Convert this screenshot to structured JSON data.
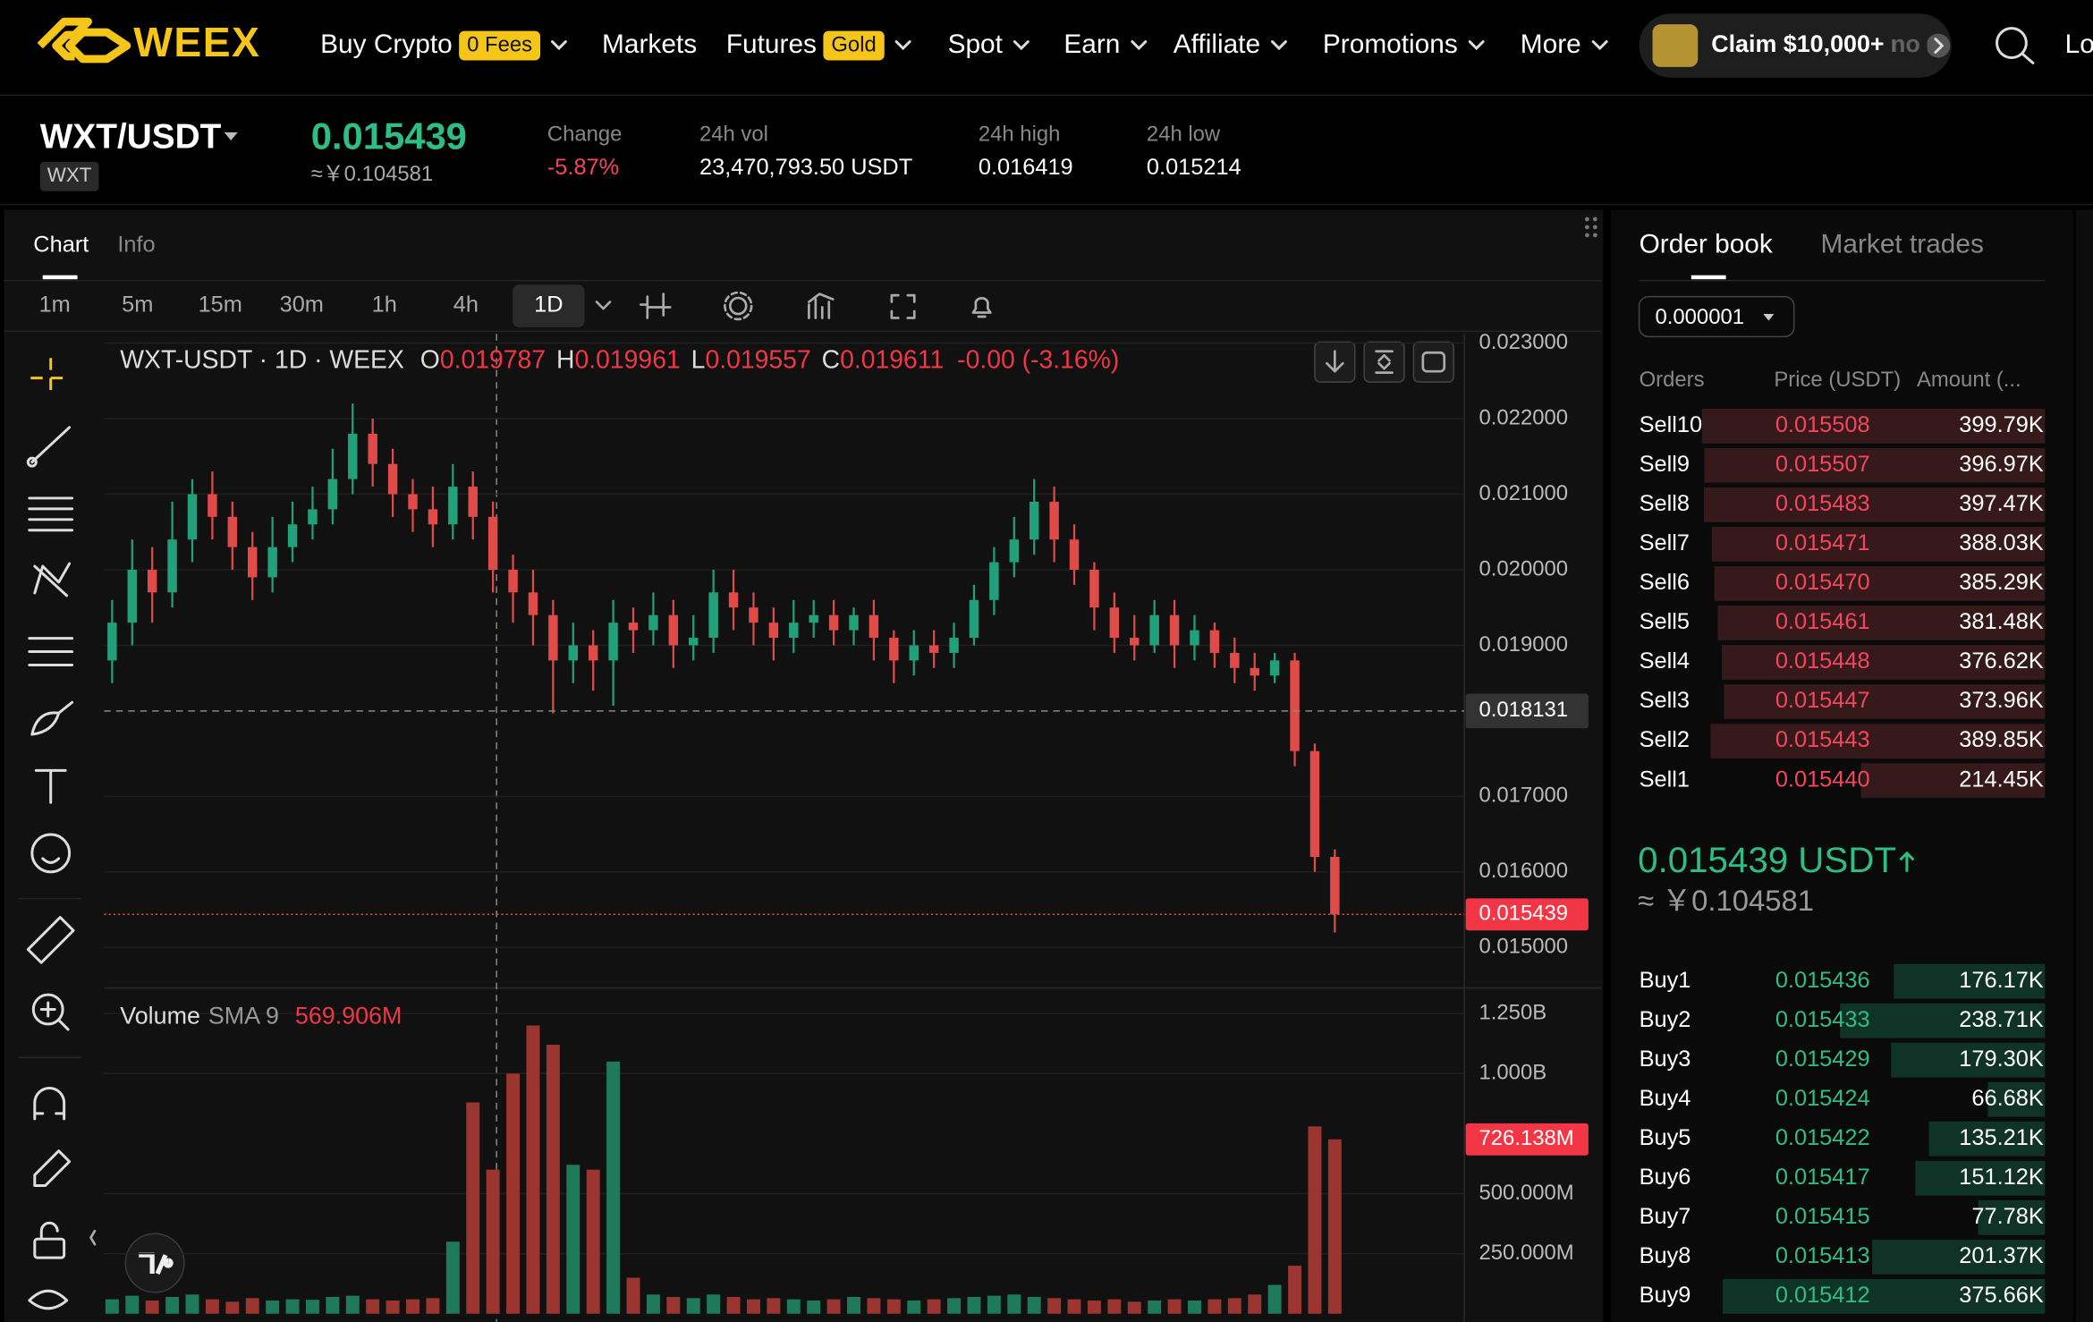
{
  "nav": {
    "logo": "WEEX",
    "menu": [
      {
        "label": "Buy Crypto",
        "badge": "0 Fees",
        "dropdown": true
      },
      {
        "label": "Markets",
        "dropdown": false
      },
      {
        "label": "Futures",
        "badge": "Gold",
        "dropdown": true
      },
      {
        "label": "Spot",
        "dropdown": true
      },
      {
        "label": "Earn",
        "dropdown": true
      },
      {
        "label": "Affiliate",
        "dropdown": true
      },
      {
        "label": "Promotions",
        "dropdown": true
      },
      {
        "label": "More",
        "dropdown": true
      }
    ],
    "promo": "Claim $10,000+ no",
    "login": "Lo"
  },
  "ticker": {
    "pair": "WXT/USDT",
    "base": "WXT",
    "price": "0.015439",
    "price_cny": "≈￥0.104581",
    "stats": [
      {
        "label": "Change",
        "value": "-5.87%"
      },
      {
        "label": "24h vol",
        "value": "23,470,793.50 USDT"
      },
      {
        "label": "24h high",
        "value": "0.016419"
      },
      {
        "label": "24h low",
        "value": "0.015214"
      }
    ]
  },
  "tabs": [
    "Chart",
    "Info"
  ],
  "intervals": [
    "1m",
    "5m",
    "15m",
    "30m",
    "1h",
    "4h",
    "1D"
  ],
  "selected_interval": 6,
  "chart_data": {
    "type": "candlestick",
    "title": "WXT-USDT · 1D · WEEX",
    "ohlc_legend": [
      {
        "label": "O",
        "value": "0.019787"
      },
      {
        "label": "H",
        "value": "0.019961"
      },
      {
        "label": "L",
        "value": "0.019557"
      },
      {
        "label": "C",
        "value": "0.019611"
      }
    ],
    "change": "-0.00 (-3.16%)",
    "up_color": "#22a07a",
    "down_color": "#e04b4a",
    "volume_up_color": "#1f7a5c",
    "volume_down_color": "#9a3530",
    "grid": true,
    "ylim": [
      0.0145,
      0.02312
    ],
    "yticks": [
      {
        "value": 0.023,
        "label": "0.023000"
      },
      {
        "value": 0.022,
        "label": "0.022000"
      },
      {
        "value": 0.021,
        "label": "0.021000"
      },
      {
        "value": 0.02,
        "label": "0.020000"
      },
      {
        "value": 0.019,
        "label": "0.019000"
      },
      {
        "value": 0.017,
        "label": "0.017000"
      },
      {
        "value": 0.016,
        "label": "0.016000"
      },
      {
        "value": 0.015,
        "label": "0.015000"
      }
    ],
    "crosshair": {
      "value": 0.018131,
      "label": "0.018131"
    },
    "last_price": {
      "value": 0.015439,
      "label": "0.015439"
    },
    "open": [
      0.0188,
      0.0193,
      0.02,
      0.0197,
      0.0204,
      0.021,
      0.0207,
      0.0203,
      0.0199,
      0.0203,
      0.0206,
      0.0208,
      0.0212,
      0.0218,
      0.0214,
      0.021,
      0.0208,
      0.0206,
      0.0211,
      0.0207,
      0.02,
      0.0197,
      0.0194,
      0.0188,
      0.019,
      0.0188,
      0.0193,
      0.0192,
      0.0194,
      0.019,
      0.0191,
      0.0197,
      0.0195,
      0.0193,
      0.0191,
      0.0193,
      0.0194,
      0.0192,
      0.0194,
      0.0191,
      0.0188,
      0.019,
      0.0189,
      0.0191,
      0.0196,
      0.0201,
      0.0204,
      0.0209,
      0.0204,
      0.02,
      0.0195,
      0.0191,
      0.019,
      0.0194,
      0.019,
      0.0192,
      0.0189,
      0.0187,
      0.0186,
      0.0188,
      0.0176,
      0.0162
    ],
    "high": [
      0.0196,
      0.0204,
      0.0203,
      0.0209,
      0.0212,
      0.0213,
      0.0209,
      0.0205,
      0.0207,
      0.0209,
      0.0211,
      0.0216,
      0.0222,
      0.022,
      0.0216,
      0.0212,
      0.0211,
      0.0214,
      0.0213,
      0.0209,
      0.0202,
      0.02,
      0.0196,
      0.0193,
      0.0192,
      0.0196,
      0.0195,
      0.0197,
      0.0196,
      0.0194,
      0.02,
      0.02,
      0.0197,
      0.0195,
      0.0196,
      0.0196,
      0.0196,
      0.0195,
      0.0196,
      0.0192,
      0.0192,
      0.0192,
      0.0193,
      0.0198,
      0.0203,
      0.0207,
      0.0212,
      0.0211,
      0.0206,
      0.0201,
      0.0197,
      0.0194,
      0.0196,
      0.0196,
      0.0194,
      0.0193,
      0.0191,
      0.0189,
      0.0189,
      0.0189,
      0.0177,
      0.0163
    ],
    "low": [
      0.0185,
      0.019,
      0.0193,
      0.0195,
      0.0201,
      0.0204,
      0.02,
      0.0196,
      0.0197,
      0.0201,
      0.0204,
      0.0206,
      0.021,
      0.0211,
      0.0207,
      0.0205,
      0.0203,
      0.0204,
      0.0204,
      0.0197,
      0.0193,
      0.019,
      0.0181,
      0.0185,
      0.0184,
      0.0182,
      0.0189,
      0.019,
      0.0187,
      0.0188,
      0.0189,
      0.0192,
      0.019,
      0.0188,
      0.0189,
      0.0191,
      0.019,
      0.019,
      0.0188,
      0.0185,
      0.0186,
      0.0187,
      0.0187,
      0.019,
      0.0194,
      0.0199,
      0.0202,
      0.0201,
      0.0198,
      0.0192,
      0.0189,
      0.0188,
      0.0189,
      0.0187,
      0.0188,
      0.0187,
      0.0185,
      0.0184,
      0.0185,
      0.0174,
      0.016,
      0.0152
    ],
    "close": [
      0.0193,
      0.02,
      0.0197,
      0.0204,
      0.021,
      0.0207,
      0.0203,
      0.0199,
      0.0203,
      0.0206,
      0.0208,
      0.0212,
      0.0218,
      0.0214,
      0.021,
      0.0208,
      0.0206,
      0.0211,
      0.0207,
      0.02,
      0.0197,
      0.0194,
      0.0188,
      0.019,
      0.0188,
      0.0193,
      0.0192,
      0.0194,
      0.019,
      0.0191,
      0.0197,
      0.0195,
      0.0193,
      0.0191,
      0.0193,
      0.0194,
      0.0192,
      0.0194,
      0.0191,
      0.0188,
      0.019,
      0.0189,
      0.0191,
      0.0196,
      0.0201,
      0.0204,
      0.0209,
      0.0204,
      0.02,
      0.0195,
      0.0191,
      0.019,
      0.0194,
      0.019,
      0.0192,
      0.0189,
      0.0187,
      0.0186,
      0.0188,
      0.0176,
      0.0162,
      0.015439
    ],
    "volume_title": "Volume",
    "volume_sma_label": "SMA 9",
    "volume_sma": "569.906M",
    "volume_ylim": [
      0,
      1345000000
    ],
    "volume_yticks": [
      {
        "value": 1250000000,
        "label": "1.250B"
      },
      {
        "value": 1000000000,
        "label": "1.000B"
      },
      {
        "value": 500000000,
        "label": "500.000M"
      },
      {
        "value": 250000000,
        "label": "250.000M"
      }
    ],
    "volume_marker": {
      "value": 726138000,
      "label": "726.138M"
    },
    "volume": [
      60000000,
      75000000,
      55000000,
      70000000,
      80000000,
      60000000,
      50000000,
      65000000,
      55000000,
      60000000,
      58000000,
      70000000,
      75000000,
      60000000,
      55000000,
      60000000,
      65000000,
      300000000,
      880000000,
      600000000,
      1000000000,
      1200000000,
      1120000000,
      620000000,
      600000000,
      1050000000,
      150000000,
      80000000,
      70000000,
      65000000,
      80000000,
      70000000,
      60000000,
      65000000,
      60000000,
      55000000,
      60000000,
      70000000,
      65000000,
      60000000,
      55000000,
      60000000,
      65000000,
      70000000,
      75000000,
      80000000,
      70000000,
      65000000,
      60000000,
      55000000,
      60000000,
      50000000,
      55000000,
      60000000,
      55000000,
      60000000,
      65000000,
      80000000,
      120000000,
      200000000,
      780000000,
      726138000
    ]
  },
  "orderbook": {
    "tabs": [
      "Order book",
      "Market trades"
    ],
    "precision": "0.000001",
    "columns": [
      "Orders",
      "Price (USDT)",
      "Amount (..."
    ],
    "asks": [
      {
        "name": "Sell10",
        "price": "0.015508",
        "amount": 399790,
        "amount_label": "399.79K"
      },
      {
        "name": "Sell9",
        "price": "0.015507",
        "amount": 396970,
        "amount_label": "396.97K"
      },
      {
        "name": "Sell8",
        "price": "0.015483",
        "amount": 397470,
        "amount_label": "397.47K"
      },
      {
        "name": "Sell7",
        "price": "0.015471",
        "amount": 388030,
        "amount_label": "388.03K"
      },
      {
        "name": "Sell6",
        "price": "0.015470",
        "amount": 385290,
        "amount_label": "385.29K"
      },
      {
        "name": "Sell5",
        "price": "0.015461",
        "amount": 381480,
        "amount_label": "381.48K"
      },
      {
        "name": "Sell4",
        "price": "0.015448",
        "amount": 376620,
        "amount_label": "376.62K"
      },
      {
        "name": "Sell3",
        "price": "0.015447",
        "amount": 373960,
        "amount_label": "373.96K"
      },
      {
        "name": "Sell2",
        "price": "0.015443",
        "amount": 389850,
        "amount_label": "389.85K"
      },
      {
        "name": "Sell1",
        "price": "0.015440",
        "amount": 214450,
        "amount_label": "214.45K"
      }
    ],
    "mid_price": "0.015439 USDT",
    "mid_price_cny": "≈ ￥0.104581",
    "bids": [
      {
        "name": "Buy1",
        "price": "0.015436",
        "amount": 176170,
        "amount_label": "176.17K"
      },
      {
        "name": "Buy2",
        "price": "0.015433",
        "amount": 238710,
        "amount_label": "238.71K"
      },
      {
        "name": "Buy3",
        "price": "0.015429",
        "amount": 179300,
        "amount_label": "179.30K"
      },
      {
        "name": "Buy4",
        "price": "0.015424",
        "amount": 66680,
        "amount_label": "66.68K"
      },
      {
        "name": "Buy5",
        "price": "0.015422",
        "amount": 135210,
        "amount_label": "135.21K"
      },
      {
        "name": "Buy6",
        "price": "0.015417",
        "amount": 151120,
        "amount_label": "151.12K"
      },
      {
        "name": "Buy7",
        "price": "0.015415",
        "amount": 77780,
        "amount_label": "77.78K"
      },
      {
        "name": "Buy8",
        "price": "0.015413",
        "amount": 201370,
        "amount_label": "201.37K"
      },
      {
        "name": "Buy9",
        "price": "0.015412",
        "amount": 375660,
        "amount_label": "375.66K"
      }
    ]
  }
}
